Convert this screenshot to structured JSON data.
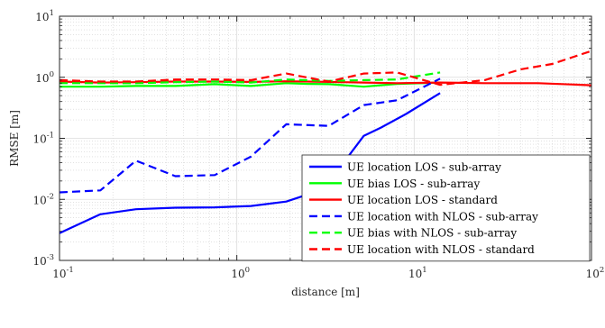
{
  "chart_data": {
    "type": "line",
    "title": "",
    "xlabel": "distance [m]",
    "ylabel": "RMSE [m]",
    "xscale": "log",
    "yscale": "log",
    "xlim": [
      0.1,
      100
    ],
    "ylim": [
      0.001,
      10
    ],
    "x_tick_labels": [
      {
        "base": "10",
        "exp": "-1"
      },
      {
        "base": "10",
        "exp": "0"
      },
      {
        "base": "10",
        "exp": "1"
      },
      {
        "base": "10",
        "exp": "2"
      }
    ],
    "y_tick_labels": [
      {
        "base": "10",
        "exp": "-3"
      },
      {
        "base": "10",
        "exp": "-2"
      },
      {
        "base": "10",
        "exp": "-1"
      },
      {
        "base": "10",
        "exp": "0"
      },
      {
        "base": "10",
        "exp": "1"
      }
    ],
    "grid": true,
    "legend_position": "lower-right",
    "series": [
      {
        "name": "UE location LOS - sub-array",
        "color": "#0000ff",
        "dash": "solid",
        "x": [
          0.1,
          0.17,
          0.27,
          0.45,
          0.75,
          1.2,
          1.9,
          2.5,
          3.0,
          4.0,
          5.2,
          6.5,
          9.0,
          14.0
        ],
        "y": [
          0.0028,
          0.0057,
          0.0069,
          0.0073,
          0.0074,
          0.0078,
          0.0092,
          0.012,
          0.018,
          0.04,
          0.11,
          0.15,
          0.25,
          0.55
        ]
      },
      {
        "name": "UE bias LOS - sub-array",
        "color": "#00ff00",
        "dash": "solid",
        "x": [
          0.1,
          0.17,
          0.27,
          0.45,
          0.75,
          1.2,
          1.9,
          2.5,
          3.3,
          5.2,
          8.0,
          14.0
        ],
        "y": [
          0.7,
          0.7,
          0.72,
          0.72,
          0.77,
          0.72,
          0.8,
          0.78,
          0.77,
          0.7,
          0.78,
          0.82
        ]
      },
      {
        "name": "UE location LOS - standard",
        "color": "#ff0000",
        "dash": "solid",
        "x": [
          0.1,
          0.17,
          0.27,
          0.45,
          0.75,
          1.2,
          1.9,
          3.3,
          5.2,
          8.0,
          14.0,
          25.0,
          50.0,
          100.0
        ],
        "y": [
          0.85,
          0.82,
          0.83,
          0.85,
          0.85,
          0.84,
          0.86,
          0.84,
          0.82,
          0.8,
          0.82,
          0.8,
          0.8,
          0.74
        ]
      },
      {
        "name": "UE location with NLOS - sub-array",
        "color": "#0000ff",
        "dash": "dashed",
        "x": [
          0.1,
          0.17,
          0.27,
          0.45,
          0.75,
          1.2,
          1.9,
          3.3,
          5.2,
          8.0,
          14.0
        ],
        "y": [
          0.013,
          0.014,
          0.043,
          0.024,
          0.025,
          0.05,
          0.17,
          0.16,
          0.35,
          0.42,
          0.95
        ]
      },
      {
        "name": "UE bias with NLOS - sub-array",
        "color": "#00ff00",
        "dash": "dashed",
        "x": [
          0.1,
          0.17,
          0.27,
          0.45,
          0.75,
          1.2,
          1.9,
          3.3,
          5.2,
          8.0,
          14.0
        ],
        "y": [
          0.8,
          0.8,
          0.8,
          0.83,
          0.85,
          0.82,
          0.92,
          0.87,
          0.9,
          0.92,
          1.2
        ]
      },
      {
        "name": "UE location with NLOS - standard",
        "color": "#ff0000",
        "dash": "dashed",
        "x": [
          0.1,
          0.17,
          0.27,
          0.45,
          0.75,
          1.2,
          1.9,
          3.3,
          5.2,
          8.0,
          14.0,
          25.0,
          40.0,
          60.0,
          100.0
        ],
        "y": [
          0.9,
          0.85,
          0.85,
          0.92,
          0.92,
          0.9,
          1.15,
          0.85,
          1.15,
          1.2,
          0.75,
          0.9,
          1.35,
          1.65,
          2.7
        ]
      }
    ]
  }
}
